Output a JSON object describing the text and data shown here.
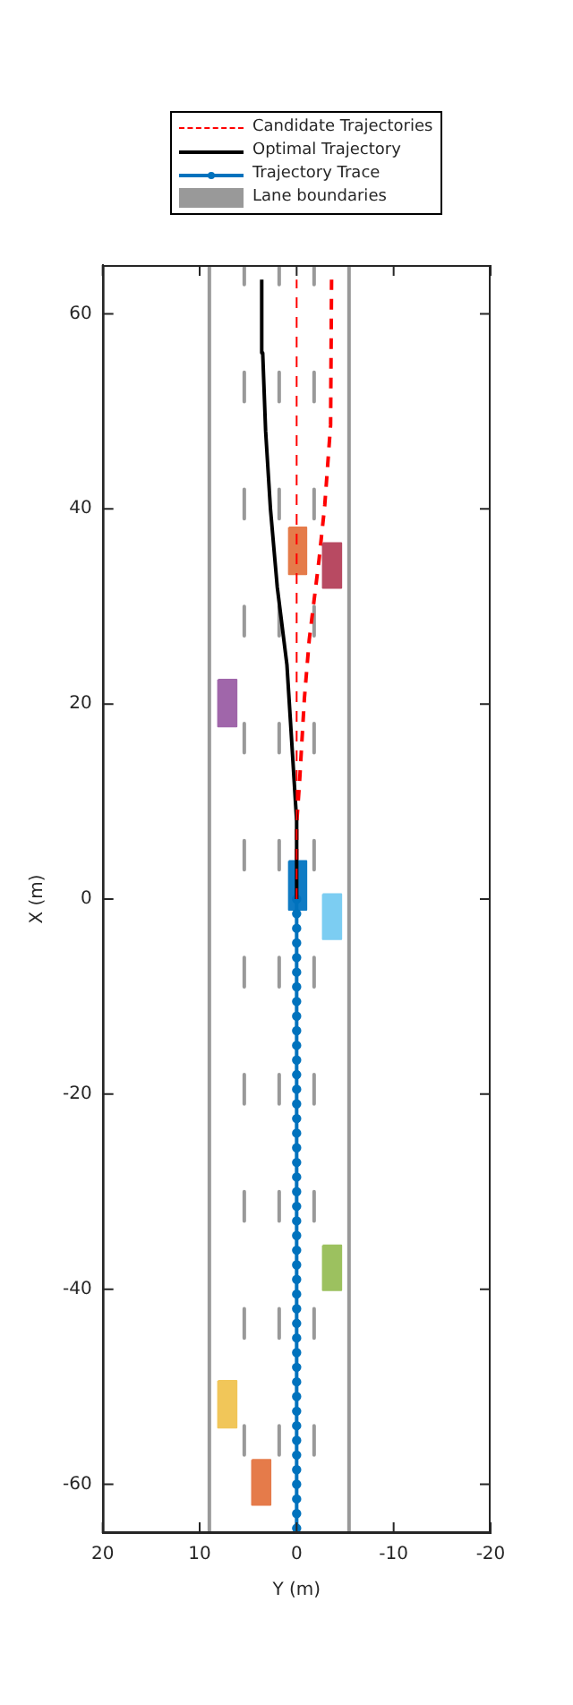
{
  "chart_data": {
    "type": "line",
    "xlabel": "Y (m)",
    "ylabel": "X (m)",
    "xlim": [
      20,
      -20
    ],
    "xticks": [
      20,
      10,
      0,
      -10,
      -20
    ],
    "ylim": [
      -65,
      65
    ],
    "yticks": [
      -60,
      -40,
      -20,
      0,
      20,
      40,
      60
    ],
    "grid": false,
    "legend": "top",
    "series": [
      {
        "name": "Candidate Trajectories",
        "type": "line",
        "line_style": "dashed",
        "color": "#ff0000",
        "x": [
          0,
          0
        ],
        "values": [
          0,
          63.5
        ]
      },
      {
        "type": "line",
        "line_style": "dashed",
        "color": "#ff0000",
        "x": [
          0,
          0,
          -0.3,
          -0.8,
          -1.3,
          -2.3,
          -2.9,
          -3.5,
          -3.6
        ],
        "values": [
          0,
          7.7,
          12,
          20.6,
          26.6,
          34.7,
          40.4,
          48.6,
          63.5
        ]
      },
      {
        "name": "Optimal Trajectory",
        "type": "line",
        "color": "#000000",
        "x": [
          0,
          0,
          0.5,
          1.0,
          2.0,
          2.7,
          3.2,
          3.5,
          3.6
        ],
        "values": [
          0,
          8,
          16,
          24,
          32,
          40,
          48,
          56,
          63.5
        ]
      },
      {
        "name": "Trajectory Trace",
        "type": "line",
        "marker": "circle",
        "color": "#0072bd",
        "x": [
          0,
          0,
          0,
          0,
          0,
          0,
          0,
          0,
          0,
          0,
          0,
          0,
          0,
          0,
          0,
          0,
          0,
          0,
          0,
          0,
          0,
          0,
          0,
          0,
          0,
          0,
          0,
          0,
          0,
          0,
          0,
          0,
          0,
          0,
          0,
          0,
          0,
          0,
          0,
          0,
          0,
          0,
          0,
          0
        ],
        "values": [
          0,
          -1.5,
          -3,
          -4.5,
          -6,
          -7.5,
          -9,
          -10.5,
          -12,
          -13.5,
          -15,
          -16.5,
          -18,
          -19.5,
          -21,
          -22.5,
          -24,
          -25.5,
          -27,
          -28.5,
          -30,
          -31.5,
          -33,
          -34.5,
          -36,
          -37.5,
          -39,
          -40.5,
          -42,
          -43.5,
          -45,
          -46.5,
          -48,
          -49.5,
          -51,
          -52.5,
          -54,
          -55.5,
          -57,
          -58.5,
          -60,
          -61.5,
          -63,
          -64.5
        ]
      },
      {
        "name": "Lane boundaries",
        "type": "line",
        "color": "#999999",
        "x": [
          9,
          9
        ],
        "values": [
          -65,
          65
        ]
      },
      {
        "type": "line",
        "color": "#999999",
        "x": [
          -5.4,
          -5.4
        ],
        "values": [
          -65,
          65
        ]
      },
      {
        "type": "line",
        "color": "#999999",
        "x": [
          5.4,
          5.4
        ],
        "values": [
          65,
          63
        ]
      },
      {
        "type": "line",
        "color": "#999999",
        "x": [
          5.4,
          5.4
        ],
        "values": [
          54,
          51
        ]
      },
      {
        "type": "line",
        "color": "#999999",
        "x": [
          5.4,
          5.4
        ],
        "values": [
          42,
          39
        ]
      },
      {
        "type": "line",
        "color": "#999999",
        "x": [
          5.4,
          5.4
        ],
        "values": [
          30,
          27
        ]
      },
      {
        "type": "line",
        "color": "#999999",
        "x": [
          5.4,
          5.4
        ],
        "values": [
          18,
          15
        ]
      },
      {
        "type": "line",
        "color": "#999999",
        "x": [
          5.4,
          5.4
        ],
        "values": [
          6,
          3
        ]
      },
      {
        "type": "line",
        "color": "#999999",
        "x": [
          5.4,
          5.4
        ],
        "values": [
          -6,
          -9
        ]
      },
      {
        "type": "line",
        "color": "#999999",
        "x": [
          5.4,
          5.4
        ],
        "values": [
          -18,
          -21
        ]
      },
      {
        "type": "line",
        "color": "#999999",
        "x": [
          5.4,
          5.4
        ],
        "values": [
          -30,
          -33
        ]
      },
      {
        "type": "line",
        "color": "#999999",
        "x": [
          5.4,
          5.4
        ],
        "values": [
          -42,
          -45
        ]
      },
      {
        "type": "line",
        "color": "#999999",
        "x": [
          5.4,
          5.4
        ],
        "values": [
          -54,
          -57
        ]
      },
      {
        "type": "line",
        "color": "#999999",
        "x": [
          1.8,
          1.8
        ],
        "values": [
          65,
          63
        ]
      },
      {
        "type": "line",
        "color": "#999999",
        "x": [
          1.8,
          1.8
        ],
        "values": [
          54,
          51
        ]
      },
      {
        "type": "line",
        "color": "#999999",
        "x": [
          1.8,
          1.8
        ],
        "values": [
          42,
          39
        ]
      },
      {
        "type": "line",
        "color": "#999999",
        "x": [
          1.8,
          1.8
        ],
        "values": [
          30,
          27
        ]
      },
      {
        "type": "line",
        "color": "#999999",
        "x": [
          1.8,
          1.8
        ],
        "values": [
          18,
          15
        ]
      },
      {
        "type": "line",
        "color": "#999999",
        "x": [
          1.8,
          1.8
        ],
        "values": [
          6,
          3
        ]
      },
      {
        "type": "line",
        "color": "#999999",
        "x": [
          1.8,
          1.8
        ],
        "values": [
          -6,
          -9
        ]
      },
      {
        "type": "line",
        "color": "#999999",
        "x": [
          1.8,
          1.8
        ],
        "values": [
          -18,
          -21
        ]
      },
      {
        "type": "line",
        "color": "#999999",
        "x": [
          1.8,
          1.8
        ],
        "values": [
          -30,
          -33
        ]
      },
      {
        "type": "line",
        "color": "#999999",
        "x": [
          1.8,
          1.8
        ],
        "values": [
          -42,
          -45
        ]
      },
      {
        "type": "line",
        "color": "#999999",
        "x": [
          1.8,
          1.8
        ],
        "values": [
          -54,
          -57
        ]
      },
      {
        "type": "line",
        "color": "#999999",
        "x": [
          -1.8,
          -1.8
        ],
        "values": [
          65,
          63
        ]
      },
      {
        "type": "line",
        "color": "#999999",
        "x": [
          -1.8,
          -1.8
        ],
        "values": [
          54,
          51
        ]
      },
      {
        "type": "line",
        "color": "#999999",
        "x": [
          -1.8,
          -1.8
        ],
        "values": [
          42,
          39
        ]
      },
      {
        "type": "line",
        "color": "#999999",
        "x": [
          -1.8,
          -1.8
        ],
        "values": [
          30,
          27
        ]
      },
      {
        "type": "line",
        "color": "#999999",
        "x": [
          -1.8,
          -1.8
        ],
        "values": [
          18,
          15
        ]
      },
      {
        "type": "line",
        "color": "#999999",
        "x": [
          -1.8,
          -1.8
        ],
        "values": [
          6,
          3
        ]
      },
      {
        "type": "line",
        "color": "#999999",
        "x": [
          -1.8,
          -1.8
        ],
        "values": [
          -6,
          -9
        ]
      },
      {
        "type": "line",
        "color": "#999999",
        "x": [
          -1.8,
          -1.8
        ],
        "values": [
          -18,
          -21
        ]
      },
      {
        "type": "line",
        "color": "#999999",
        "x": [
          -1.8,
          -1.8
        ],
        "values": [
          -30,
          -33
        ]
      },
      {
        "type": "line",
        "color": "#999999",
        "x": [
          -1.8,
          -1.8
        ],
        "values": [
          -42,
          -45
        ]
      },
      {
        "type": "line",
        "color": "#999999",
        "x": [
          -1.8,
          -1.8
        ],
        "values": [
          -54,
          -57
        ]
      },
      {
        "type": "area",
        "color": "#e57b4a",
        "x": [
          0.8,
          -1.0,
          -1.0,
          0.8,
          0.8
        ],
        "values": [
          38.1,
          38.1,
          33.3,
          33.3,
          38.1
        ]
      },
      {
        "type": "area",
        "color": "#b84a62",
        "x": [
          -2.7,
          -4.6,
          -4.6,
          -2.7,
          -2.7
        ],
        "values": [
          36.5,
          36.5,
          31.9,
          31.9,
          36.5
        ]
      },
      {
        "type": "area",
        "color": "#a066aa",
        "x": [
          8.1,
          6.2,
          6.2,
          8.1,
          8.1
        ],
        "values": [
          22.5,
          22.5,
          17.7,
          17.7,
          22.5
        ]
      },
      {
        "type": "area",
        "color": "#7ccdf2",
        "x": [
          -2.7,
          -4.6,
          -4.6,
          -2.7,
          -2.7
        ],
        "values": [
          0.5,
          0.5,
          -4.1,
          -4.1,
          0.5
        ]
      },
      {
        "type": "area",
        "color": "#9cc15f",
        "x": [
          -2.7,
          -4.6,
          -4.6,
          -2.7,
          -2.7
        ],
        "values": [
          -35.5,
          -35.5,
          -40.1,
          -40.1,
          -35.5
        ]
      },
      {
        "type": "area",
        "color": "#f1c659",
        "x": [
          8.1,
          6.2,
          6.2,
          8.1,
          8.1
        ],
        "values": [
          -49.4,
          -49.4,
          -54.2,
          -54.2,
          -49.4
        ]
      },
      {
        "type": "area",
        "color": "#e57b4a",
        "x": [
          4.6,
          2.7,
          2.7,
          4.6,
          4.6
        ],
        "values": [
          -57.5,
          -57.5,
          -62.1,
          -62.1,
          -57.5
        ]
      },
      {
        "type": "area",
        "color": "#0f7bc4",
        "x": [
          0.8,
          -1.0,
          -1.0,
          0.8,
          0.8
        ],
        "values": [
          3.9,
          3.9,
          -1.1,
          -1.1,
          3.9
        ]
      }
    ]
  }
}
